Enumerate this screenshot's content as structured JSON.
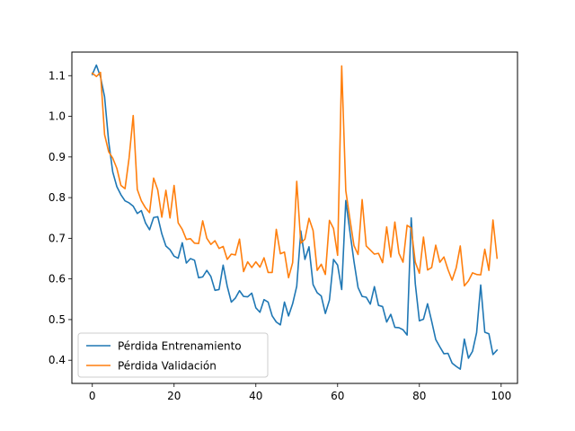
{
  "chart_data": {
    "type": "line",
    "grid": false,
    "legend_position": "lower-left",
    "xlim": [
      -5,
      104
    ],
    "ylim": [
      0.343,
      1.158
    ],
    "x_ticks": [
      0,
      20,
      40,
      60,
      80,
      100
    ],
    "y_ticks": [
      0.4,
      0.5,
      0.6,
      0.7,
      0.8,
      0.9,
      1.0,
      1.1
    ],
    "series": [
      {
        "name": "Pérdida Entrenamiento",
        "color": "#1f77b4",
        "values": [
          1.103,
          1.126,
          1.097,
          1.048,
          0.938,
          0.863,
          0.827,
          0.807,
          0.792,
          0.787,
          0.779,
          0.761,
          0.768,
          0.738,
          0.721,
          0.751,
          0.753,
          0.711,
          0.681,
          0.672,
          0.656,
          0.651,
          0.689,
          0.639,
          0.65,
          0.646,
          0.603,
          0.605,
          0.621,
          0.606,
          0.572,
          0.574,
          0.634,
          0.582,
          0.543,
          0.553,
          0.571,
          0.557,
          0.556,
          0.565,
          0.529,
          0.518,
          0.549,
          0.543,
          0.509,
          0.494,
          0.487,
          0.543,
          0.509,
          0.539,
          0.582,
          0.718,
          0.648,
          0.679,
          0.586,
          0.566,
          0.558,
          0.515,
          0.548,
          0.648,
          0.634,
          0.574,
          0.793,
          0.717,
          0.643,
          0.579,
          0.557,
          0.555,
          0.538,
          0.581,
          0.535,
          0.532,
          0.494,
          0.513,
          0.481,
          0.48,
          0.475,
          0.462,
          0.75,
          0.588,
          0.497,
          0.501,
          0.539,
          0.496,
          0.451,
          0.433,
          0.416,
          0.417,
          0.393,
          0.385,
          0.378,
          0.452,
          0.405,
          0.422,
          0.468,
          0.585,
          0.469,
          0.465,
          0.414,
          0.425
        ]
      },
      {
        "name": "Pérdida Validación",
        "color": "#ff7f0e",
        "values": [
          1.106,
          1.098,
          1.108,
          0.955,
          0.913,
          0.897,
          0.872,
          0.83,
          0.822,
          0.898,
          1.002,
          0.82,
          0.792,
          0.775,
          0.763,
          0.848,
          0.819,
          0.752,
          0.818,
          0.75,
          0.83,
          0.738,
          0.722,
          0.697,
          0.699,
          0.688,
          0.687,
          0.743,
          0.7,
          0.685,
          0.694,
          0.675,
          0.68,
          0.648,
          0.661,
          0.659,
          0.698,
          0.618,
          0.642,
          0.628,
          0.642,
          0.629,
          0.652,
          0.616,
          0.616,
          0.722,
          0.662,
          0.666,
          0.603,
          0.64,
          0.84,
          0.688,
          0.698,
          0.749,
          0.719,
          0.621,
          0.636,
          0.611,
          0.744,
          0.724,
          0.658,
          1.124,
          0.817,
          0.748,
          0.682,
          0.66,
          0.795,
          0.681,
          0.671,
          0.661,
          0.663,
          0.64,
          0.728,
          0.654,
          0.74,
          0.663,
          0.641,
          0.732,
          0.725,
          0.641,
          0.614,
          0.703,
          0.622,
          0.628,
          0.683,
          0.641,
          0.654,
          0.623,
          0.597,
          0.627,
          0.681,
          0.583,
          0.595,
          0.615,
          0.611,
          0.61,
          0.673,
          0.621,
          0.745,
          0.651
        ]
      }
    ]
  }
}
